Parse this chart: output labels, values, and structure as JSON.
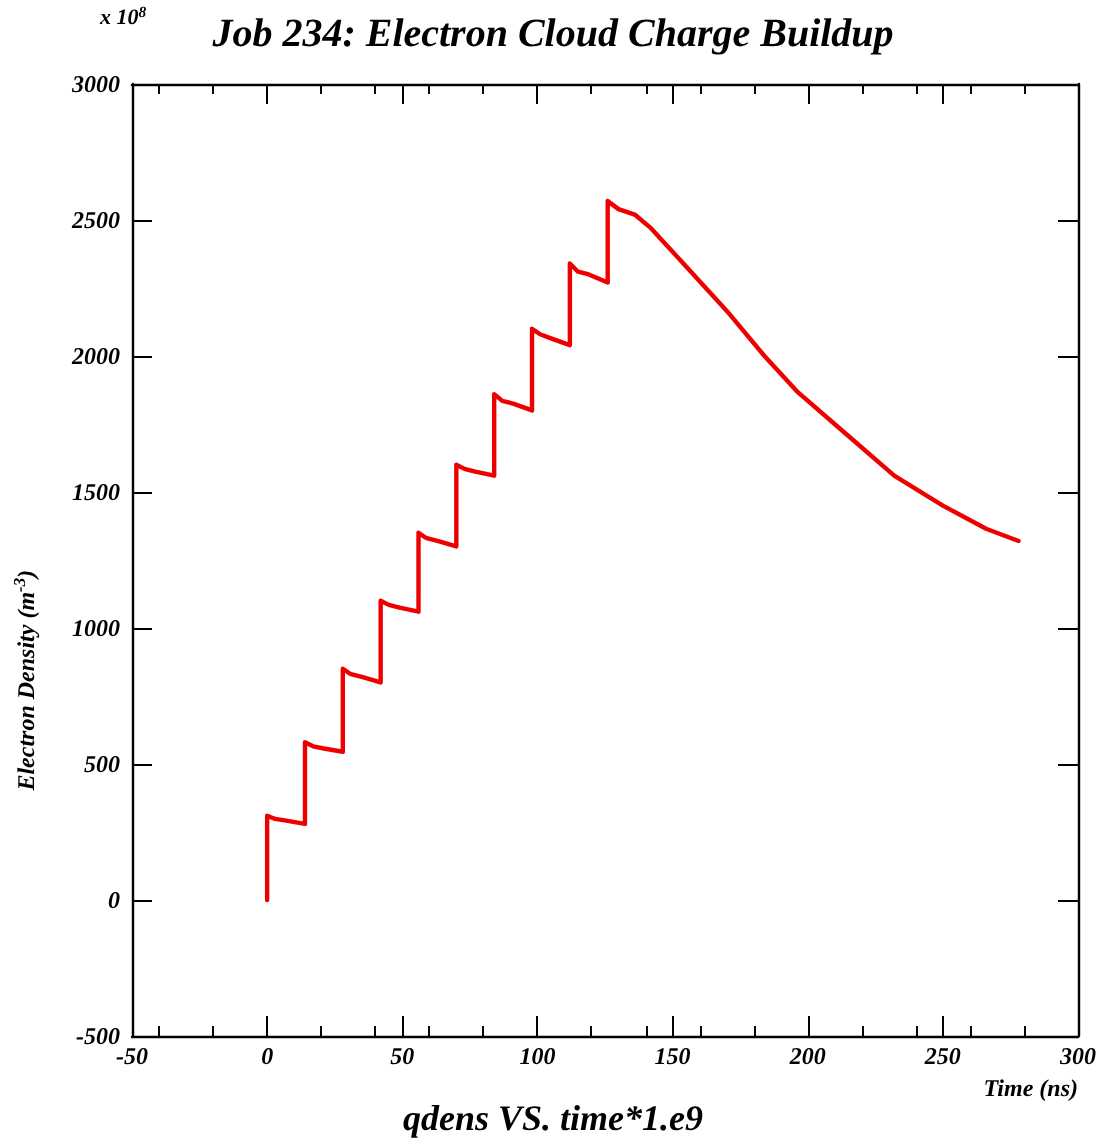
{
  "chart_data": {
    "type": "line",
    "title": "Job 234: Electron Cloud Charge Buildup",
    "xlabel": "Time (ns)",
    "ylabel": "Electron Density (m$^{-3}$)",
    "annotations": [
      "x 10$^{8}$",
      "qdens VS. time*1.e9"
    ],
    "x": [
      0,
      0,
      3,
      7,
      14,
      14,
      17,
      21,
      28,
      28,
      31,
      35,
      42,
      42,
      45,
      49,
      56,
      56,
      59,
      63,
      70,
      70,
      73,
      77,
      84,
      84,
      87,
      91,
      98,
      98,
      101,
      105,
      112,
      112,
      115,
      119,
      126,
      126,
      130,
      136,
      142,
      154,
      171,
      184,
      196,
      214,
      232,
      250,
      266,
      278
    ],
    "series": [
      {
        "color": "#ee0000",
        "values": [
          0,
          310,
          298,
          292,
          280,
          580,
          565,
          557,
          545,
          850,
          830,
          820,
          800,
          1100,
          1085,
          1075,
          1060,
          1350,
          1330,
          1320,
          1300,
          1600,
          1585,
          1575,
          1560,
          1860,
          1835,
          1825,
          1800,
          2100,
          2080,
          2065,
          2040,
          2340,
          2310,
          2300,
          2270,
          2570,
          2540,
          2520,
          2470,
          2340,
          2155,
          2000,
          1870,
          1715,
          1560,
          1450,
          1365,
          1320
        ]
      }
    ],
    "xlim": [
      -50,
      300
    ],
    "xticks": [
      -50,
      0,
      50,
      100,
      150,
      200,
      250,
      300
    ],
    "ylim": [
      -500,
      3000
    ],
    "yticks": [
      -500,
      0,
      500,
      1000,
      1500,
      2000,
      2500,
      3000
    ],
    "grid": false,
    "marker": "none",
    "line_style": "solid"
  }
}
